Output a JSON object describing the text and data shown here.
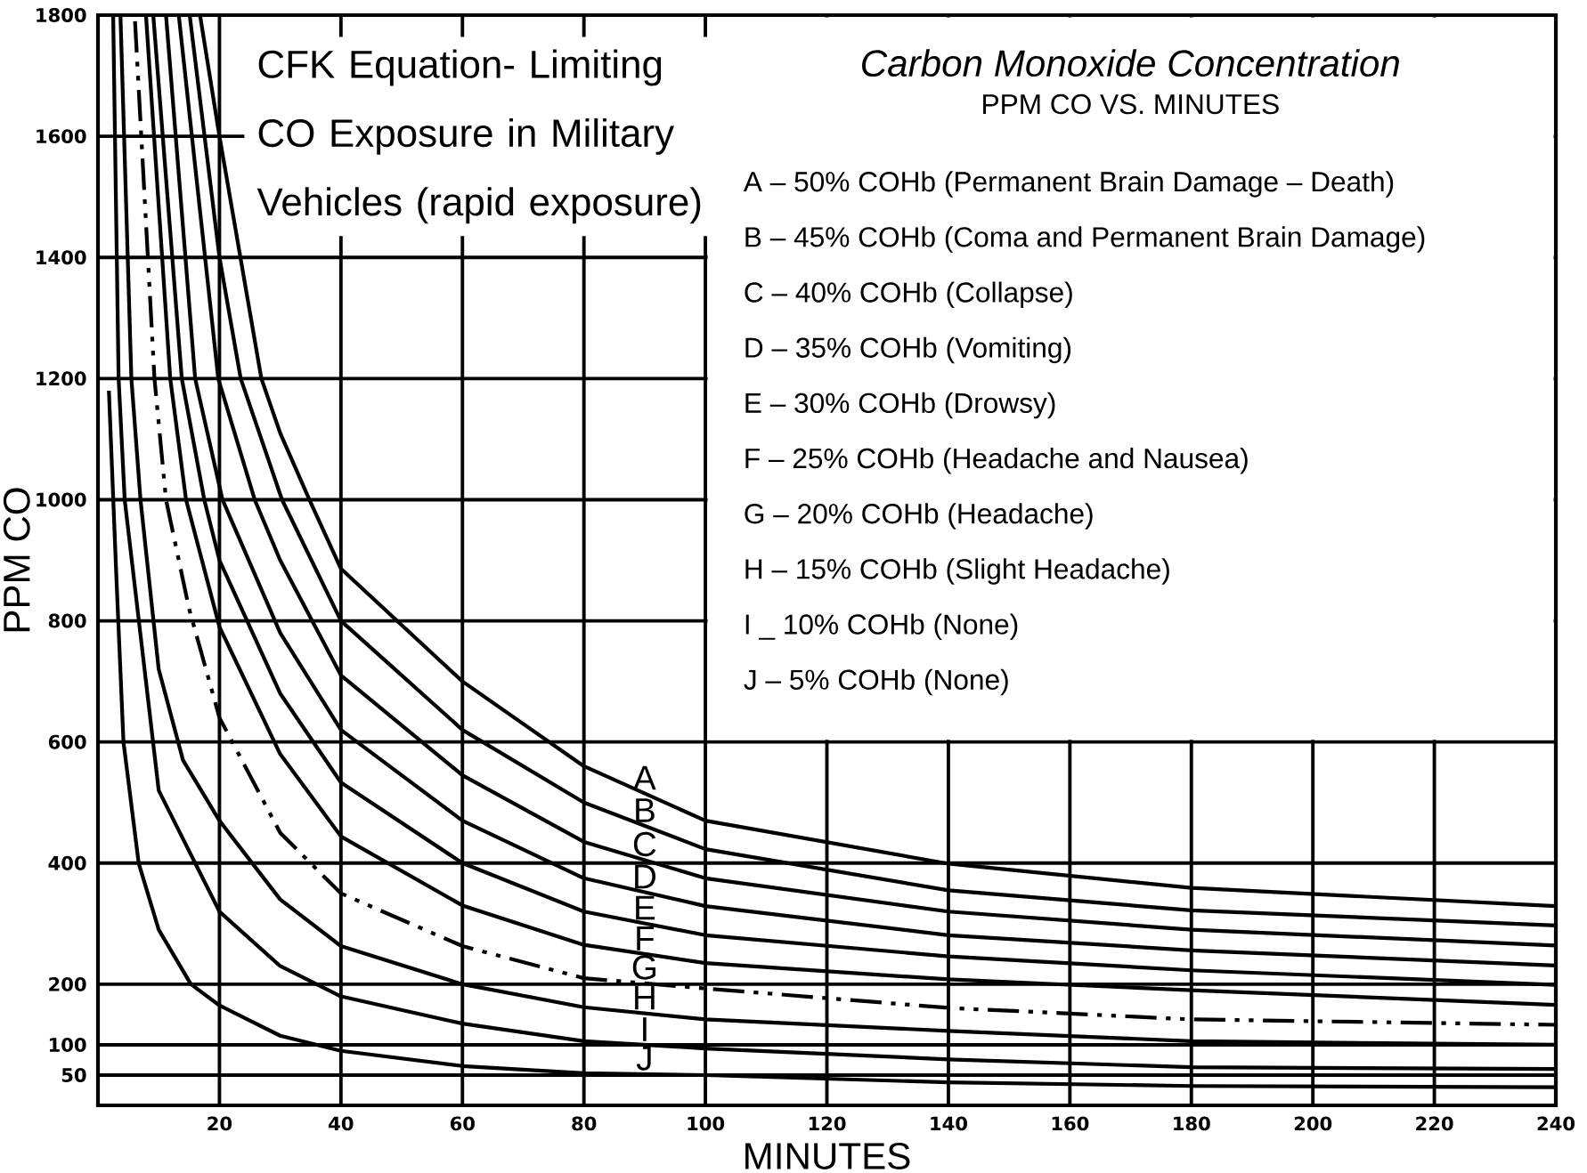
{
  "chart_data": {
    "type": "line",
    "title": "CFK Equation- Limiting CO Exposure in Military Vehicles (rapid exposure)",
    "subtitle": "Carbon Monoxide Concentration",
    "xlabel": "MINUTES",
    "ylabel": "PPM CO",
    "xlim": [
      0,
      240
    ],
    "ylim": [
      0,
      1800
    ],
    "xticks": [
      20,
      40,
      60,
      80,
      100,
      120,
      140,
      160,
      180,
      200,
      220,
      240
    ],
    "yticks": [
      50,
      100,
      200,
      400,
      600,
      800,
      1000,
      1200,
      1400,
      1600,
      1800
    ],
    "grid": true,
    "annotations": [
      "PPM CO VS. MINUTES",
      "A – 50% COHb (Permanent Brain Damage – Death)",
      "B – 45% COHb (Coma and Permanent Brain Damage)",
      "C – 40% COHb (Collapse)",
      "D – 35% COHb (Vomiting)",
      "E – 30% COHb (Drowsy)",
      "F – 25% COHb (Headache and Nausea)",
      "G – 20% COHb (Headache)",
      "H – 15% COHb (Slight Headache)",
      "I _ 10% COHb (None)",
      "J –  5% COHb (None)"
    ],
    "series": [
      {
        "name": "A",
        "color": "#000000",
        "x": [
          16.8,
          20,
          26.9,
          30,
          34.8,
          40,
          60,
          80,
          100,
          140,
          180,
          240
        ],
        "values": [
          1800,
          1600,
          1200,
          1110,
          1000,
          886,
          700,
          560,
          470,
          399,
          359,
          329
        ]
      },
      {
        "name": "B",
        "color": "#000000",
        "x": [
          15.1,
          20,
          23.5,
          30.3,
          40,
          60,
          80,
          100,
          140,
          180,
          240
        ],
        "values": [
          1800,
          1400,
          1200,
          1000,
          800,
          620,
          500,
          423,
          355,
          322,
          297
        ]
      },
      {
        "name": "C",
        "color": "#000000",
        "x": [
          13.3,
          19.8,
          25.8,
          30,
          40,
          60,
          80,
          100,
          140,
          180,
          240
        ],
        "values": [
          1800,
          1200,
          1000,
          900,
          710,
          545,
          435,
          375,
          320,
          290,
          264
        ]
      },
      {
        "name": "D",
        "color": "#000000",
        "x": [
          11.2,
          16,
          20.5,
          30,
          40,
          60,
          80,
          100,
          140,
          180,
          240
        ],
        "values": [
          1800,
          1200,
          1000,
          780,
          620,
          470,
          375,
          329,
          281,
          256,
          231
        ]
      },
      {
        "name": "E",
        "color": "#000000",
        "x": [
          9.1,
          13.8,
          17.5,
          20,
          30,
          40,
          60,
          80,
          100,
          140,
          180,
          240
        ],
        "values": [
          1800,
          1200,
          1000,
          900,
          680,
          533,
          400,
          320,
          281,
          246,
          223,
          199
        ]
      },
      {
        "name": "F",
        "color": "#000000",
        "x": [
          7.9,
          11.9,
          14.5,
          20,
          30,
          40,
          60,
          80,
          100,
          140,
          180,
          240
        ],
        "values": [
          1800,
          1200,
          1000,
          790,
          580,
          444,
          330,
          265,
          235,
          208,
          190,
          166
        ]
      },
      {
        "name": "G",
        "color": "#000000",
        "line_style": "dashed",
        "x": [
          6.1,
          9.3,
          11.2,
          15,
          20,
          30,
          40,
          60,
          80,
          100,
          140,
          180,
          240
        ],
        "values": [
          1790,
          1200,
          1000,
          820,
          640,
          450,
          350,
          263,
          210,
          193,
          161,
          142,
          133
        ]
      },
      {
        "name": "H",
        "color": "#000000",
        "x": [
          3.7,
          5.5,
          7,
          10,
          14,
          20,
          30,
          40,
          60,
          80,
          100,
          140,
          180,
          240
        ],
        "values": [
          1800,
          1200,
          1000,
          720,
          570,
          470,
          340,
          263,
          200,
          162,
          142,
          123,
          106,
          100
        ]
      },
      {
        "name": "I",
        "color": "#000000",
        "x": [
          2.5,
          3.4,
          4.4,
          10,
          20,
          30,
          40,
          60,
          80,
          100,
          140,
          180,
          240
        ],
        "values": [
          1800,
          1200,
          1000,
          520,
          320,
          230,
          180,
          135,
          106,
          94,
          76,
          63,
          60
        ]
      },
      {
        "name": "J",
        "color": "#000000",
        "x": [
          1.8,
          3,
          4.2,
          6.7,
          10,
          15.3,
          20,
          30,
          40,
          60,
          80,
          100,
          140,
          180,
          240
        ],
        "values": [
          1180,
          880,
          600,
          400,
          290,
          200,
          165,
          115,
          90,
          65,
          53,
          50,
          38,
          32,
          30
        ]
      }
    ]
  }
}
